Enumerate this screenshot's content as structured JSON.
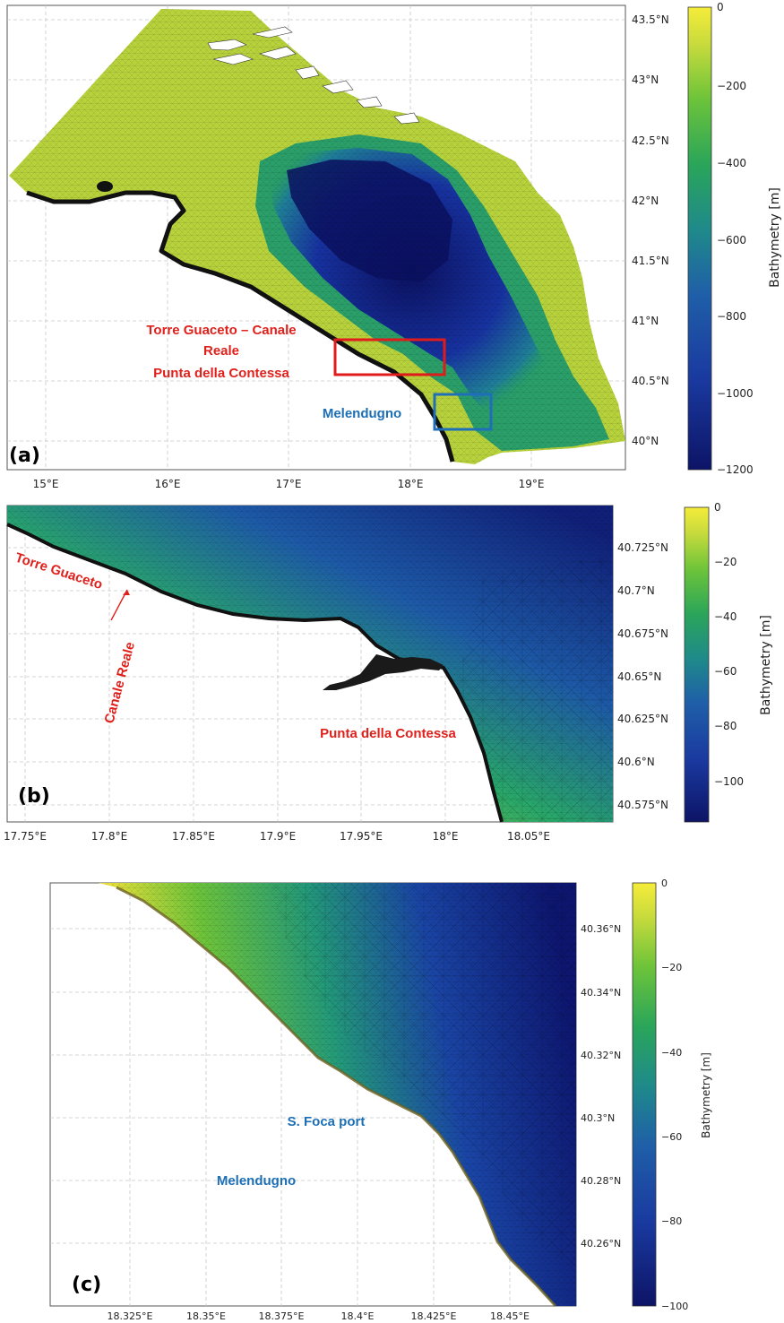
{
  "panels": [
    {
      "id": "a",
      "label": "(a)",
      "x_ticks": [
        "15°E",
        "16°E",
        "17°E",
        "18°E",
        "19°E"
      ],
      "y_ticks": [
        "43.5°N",
        "43°N",
        "42.5°N",
        "42°N",
        "41.5°N",
        "41°N",
        "40.5°N",
        "40°N"
      ],
      "colorbar": {
        "label": "Bathymetry [m]",
        "ticks": [
          "0",
          "−200",
          "−400",
          "−600",
          "−800",
          "−1000",
          "−1200"
        ],
        "min": -1200,
        "max": 0
      },
      "annotations": {
        "red_line1": "Torre Guaceto – Canale",
        "red_line2": "Reale",
        "red_line3": "Punta della Contessa",
        "blue": "Melendugno"
      }
    },
    {
      "id": "b",
      "label": "(b)",
      "x_ticks": [
        "17.75°E",
        "17.8°E",
        "17.85°E",
        "17.9°E",
        "17.95°E",
        "18°E",
        "18.05°E"
      ],
      "y_ticks": [
        "40.725°N",
        "40.7°N",
        "40.675°N",
        "40.65°N",
        "40.625°N",
        "40.6°N",
        "40.575°N"
      ],
      "colorbar": {
        "label": "Bathymetry [m]",
        "ticks": [
          "0",
          "−20",
          "−40",
          "−60",
          "−80",
          "−100"
        ],
        "min": -115,
        "max": 0
      },
      "annotations": {
        "torre": "Torre Guaceto",
        "canale": "Canale Reale",
        "punta": "Punta della Contessa"
      }
    },
    {
      "id": "c",
      "label": "(c)",
      "x_ticks": [
        "18.325°E",
        "18.35°E",
        "18.375°E",
        "18.4°E",
        "18.425°E",
        "18.45°E"
      ],
      "y_ticks": [
        "40.36°N",
        "40.34°N",
        "40.32°N",
        "40.3°N",
        "40.28°N",
        "40.26°N"
      ],
      "colorbar": {
        "label": "Bathymetry [m]",
        "ticks": [
          "0",
          "−20",
          "−40",
          "−60",
          "−80",
          "−100"
        ],
        "min": -100,
        "max": 0
      },
      "annotations": {
        "port": "S. Foca port",
        "town": "Melendugno"
      }
    }
  ],
  "colors": {
    "annotation_red": "#e0201b",
    "annotation_blue": "#1c6fb5",
    "box_red": "#e01b1b",
    "box_blue": "#1f6fb8"
  }
}
